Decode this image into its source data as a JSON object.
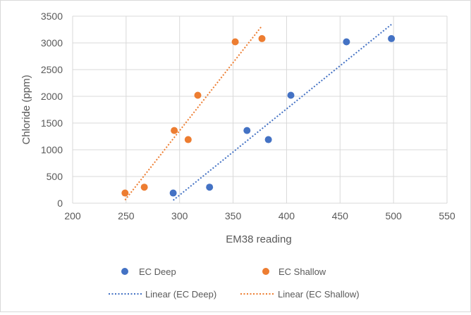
{
  "chart_data": {
    "type": "scatter",
    "title": "",
    "xlabel": "EM38 reading",
    "ylabel": "Chloride (ppm)",
    "xlim": [
      200,
      550
    ],
    "ylim": [
      0,
      3500
    ],
    "x_ticks": [
      200,
      250,
      300,
      350,
      400,
      450,
      500,
      550
    ],
    "y_ticks": [
      0,
      500,
      1000,
      1500,
      2000,
      2500,
      3000,
      3500
    ],
    "grid": true,
    "legend_position": "bottom",
    "series": [
      {
        "name": "EC Deep",
        "color": "#4472c4",
        "points": [
          {
            "x": 294,
            "y": 190
          },
          {
            "x": 328,
            "y": 300
          },
          {
            "x": 363,
            "y": 1360
          },
          {
            "x": 383,
            "y": 1190
          },
          {
            "x": 404,
            "y": 2020
          },
          {
            "x": 456,
            "y": 3020
          },
          {
            "x": 498,
            "y": 3080
          }
        ],
        "trendline": {
          "name": "Linear (EC Deep)",
          "x_start": 294,
          "x_end": 498
        }
      },
      {
        "name": "EC Shallow",
        "color": "#ed7d31",
        "points": [
          {
            "x": 249,
            "y": 190
          },
          {
            "x": 267,
            "y": 300
          },
          {
            "x": 295,
            "y": 1360
          },
          {
            "x": 308,
            "y": 1190
          },
          {
            "x": 317,
            "y": 2020
          },
          {
            "x": 352,
            "y": 3020
          },
          {
            "x": 377,
            "y": 3080
          }
        ],
        "trendline": {
          "name": "Linear (EC Shallow)",
          "x_start": 249,
          "x_end": 377
        }
      }
    ]
  }
}
